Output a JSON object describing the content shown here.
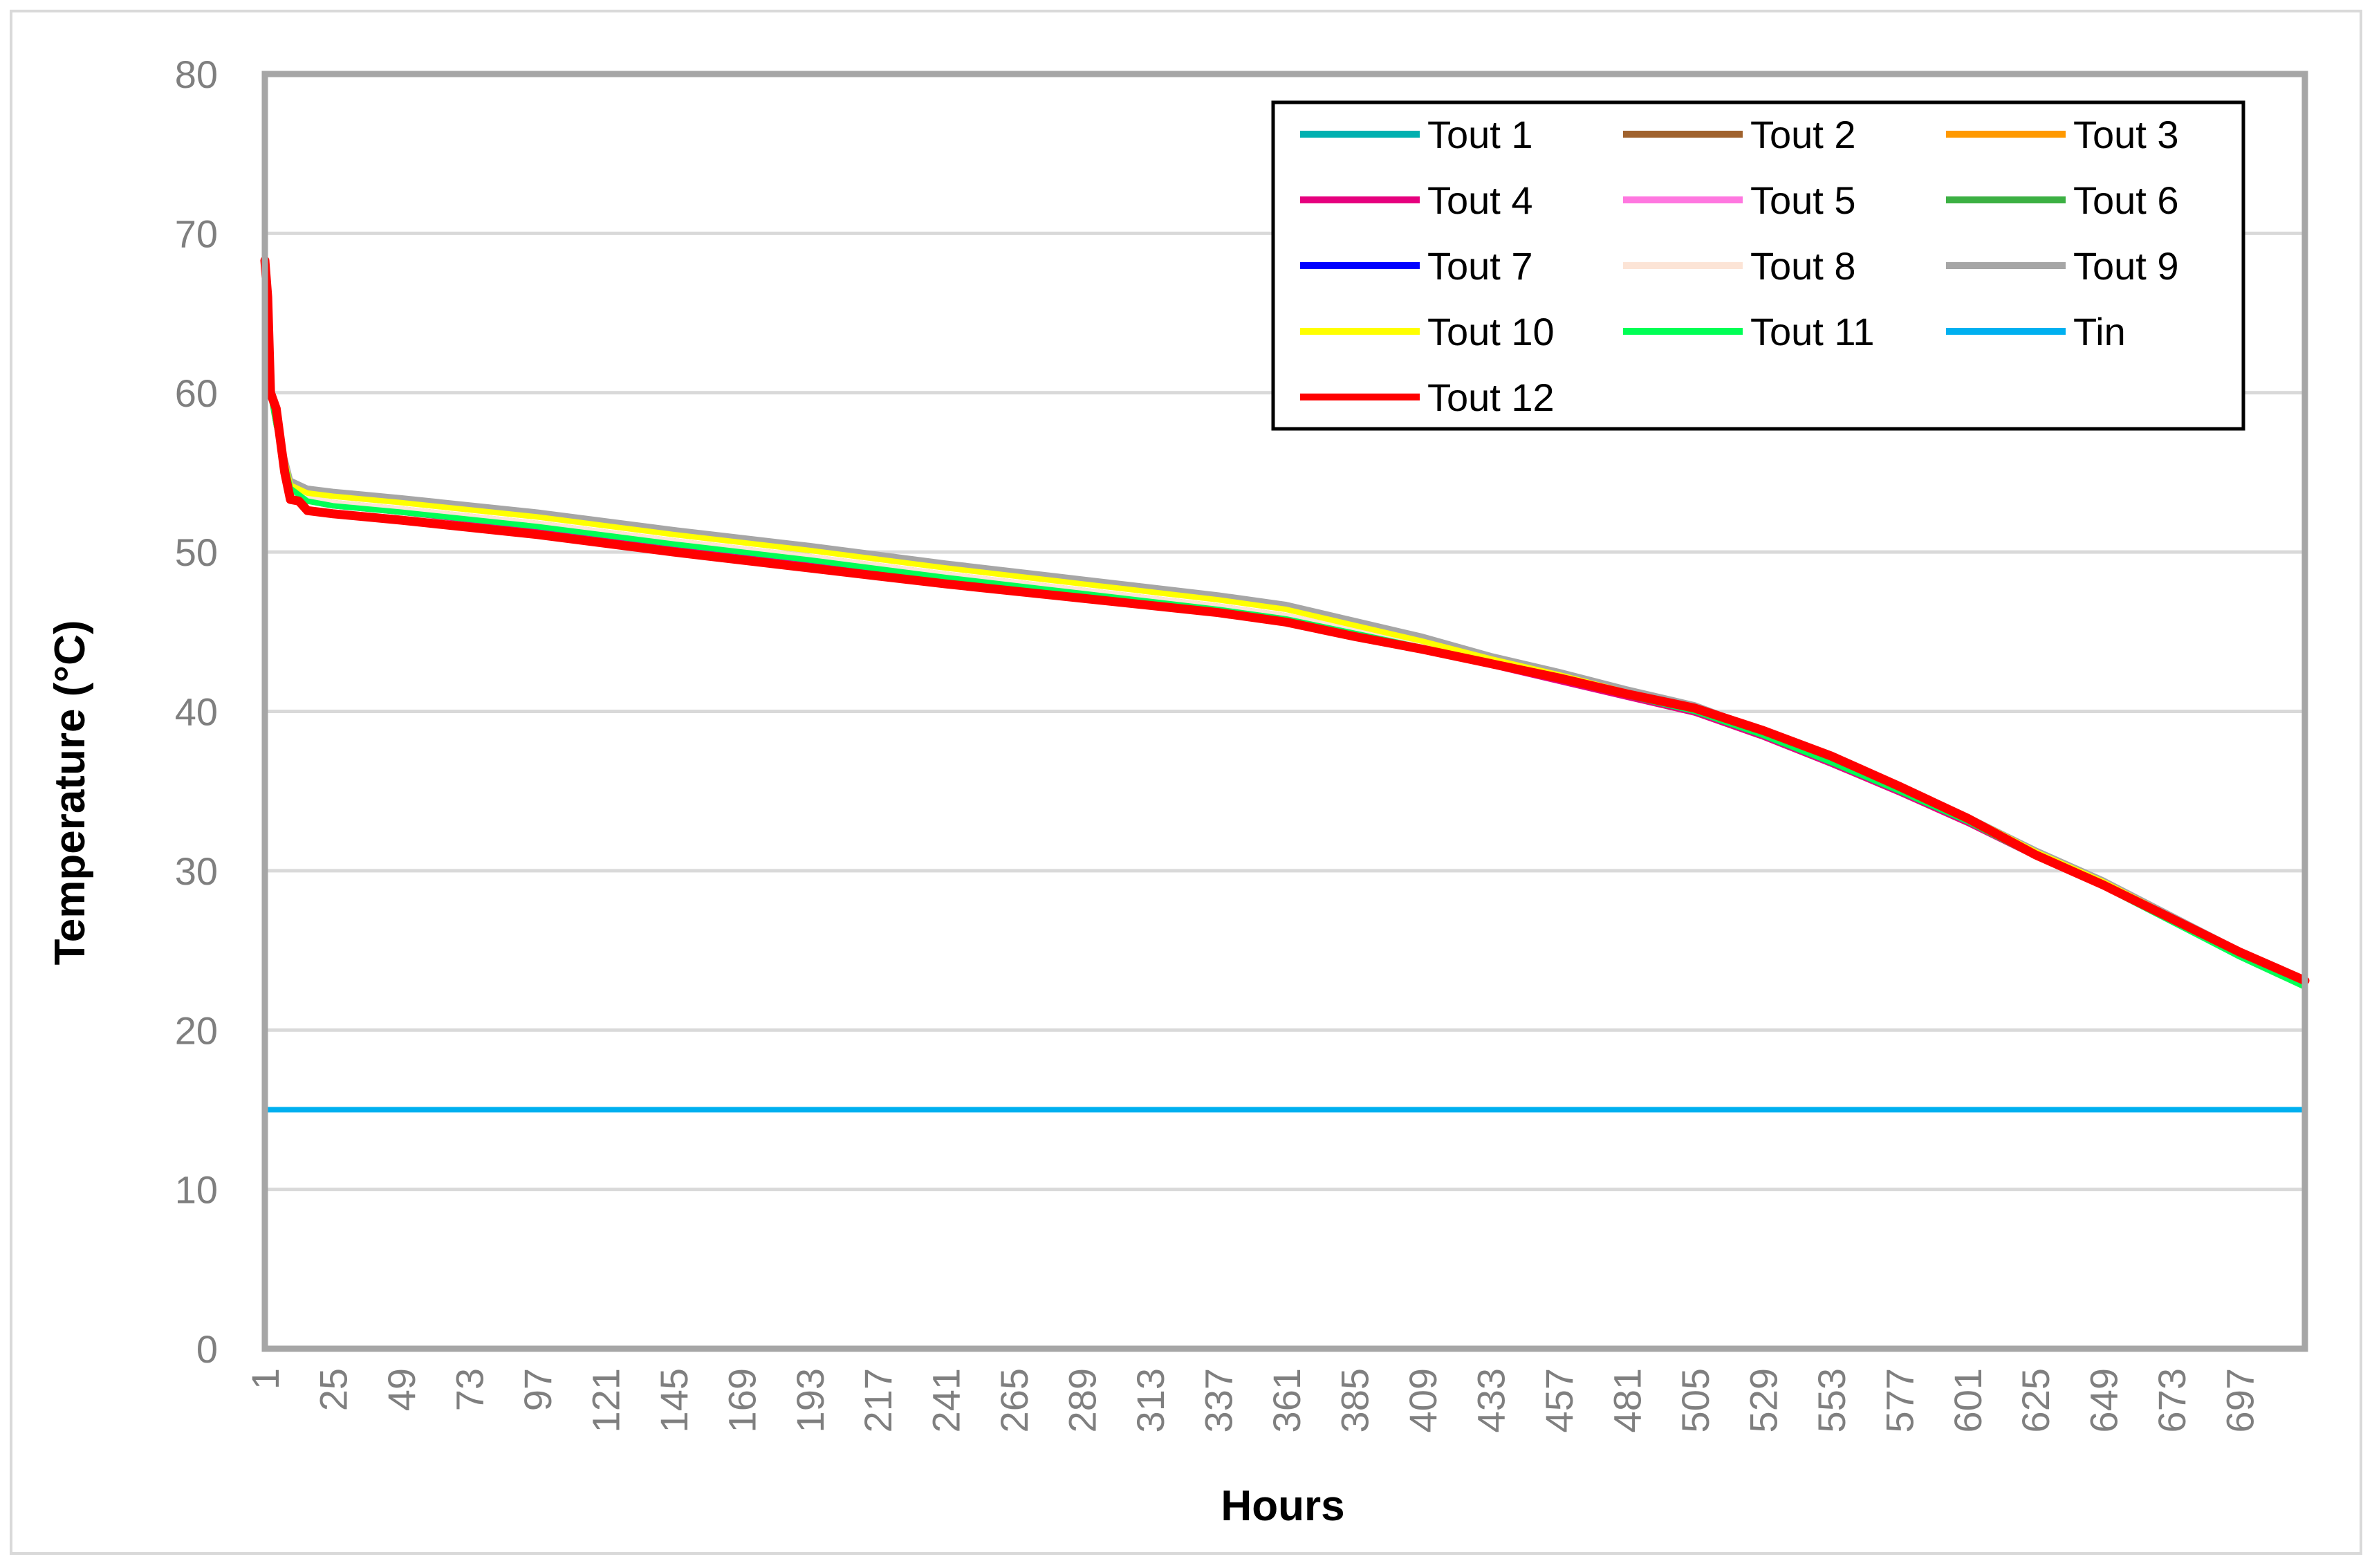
{
  "chart_data": {
    "type": "line",
    "title": "",
    "xlabel": "Hours",
    "ylabel": "Temperature (°C)",
    "xlim": [
      1,
      720
    ],
    "ylim": [
      0,
      80
    ],
    "y_ticks": [
      0,
      10,
      20,
      30,
      40,
      50,
      60,
      70,
      80
    ],
    "x_ticks": [
      "1",
      "25",
      "49",
      "73",
      "97",
      "121",
      "145",
      "169",
      "193",
      "217",
      "241",
      "265",
      "289",
      "313",
      "337",
      "361",
      "385",
      "409",
      "433",
      "457",
      "481",
      "505",
      "529",
      "553",
      "577",
      "601",
      "625",
      "649",
      "673",
      "697"
    ],
    "grid": "horizontal",
    "legend_position": "top-right",
    "series": [
      {
        "name": "Tout 1",
        "color": "#00B0B0",
        "x": [
          1,
          3,
          5,
          10,
          16,
          25,
          49,
          97,
          145,
          193,
          241,
          289,
          337,
          361,
          385,
          409,
          433,
          457,
          481,
          505,
          529,
          553,
          577,
          601,
          625,
          649,
          673,
          697,
          720
        ],
        "values": [
          66,
          60,
          58,
          54,
          53.3,
          53,
          52.6,
          51.7,
          50.6,
          49.6,
          48.5,
          47.5,
          46.5,
          45.9,
          45,
          44.1,
          43,
          42,
          41,
          40,
          38.5,
          36.8,
          35,
          33.2,
          31,
          29.2,
          27,
          24.8,
          22.9
        ]
      },
      {
        "name": "Tout 2",
        "color": "#A0622D",
        "x": [
          1,
          3,
          5,
          10,
          16,
          25,
          49,
          97,
          145,
          193,
          241,
          289,
          337,
          361,
          385,
          409,
          433,
          457,
          481,
          505,
          529,
          553,
          577,
          601,
          625,
          649,
          673,
          697,
          720
        ],
        "values": [
          66,
          60,
          58,
          54,
          53.2,
          53,
          52.5,
          51.6,
          50.5,
          49.5,
          48.4,
          47.4,
          46.4,
          45.8,
          44.9,
          44,
          43,
          42,
          41,
          40,
          38.5,
          36.8,
          35,
          33.1,
          31,
          29.1,
          27,
          24.8,
          22.9
        ]
      },
      {
        "name": "Tout 3",
        "color": "#FF9900",
        "x": [
          1,
          3,
          5,
          10,
          16,
          25,
          49,
          97,
          145,
          193,
          241,
          289,
          337,
          361,
          385,
          409,
          433,
          457,
          481,
          505,
          529,
          553,
          577,
          601,
          625,
          649,
          673,
          697,
          720
        ],
        "values": [
          66,
          60,
          58,
          54,
          53.4,
          53.1,
          52.7,
          51.8,
          50.7,
          49.7,
          48.6,
          47.6,
          46.6,
          46,
          45.1,
          44.2,
          43.1,
          42.1,
          41.1,
          40.1,
          38.6,
          36.9,
          35.1,
          33.3,
          31.1,
          29.3,
          27.1,
          24.9,
          23
        ]
      },
      {
        "name": "Tout 4",
        "color": "#E6007E",
        "x": [
          1,
          3,
          5,
          10,
          16,
          25,
          49,
          97,
          145,
          193,
          241,
          289,
          337,
          361,
          385,
          409,
          433,
          457,
          481,
          505,
          529,
          553,
          577,
          601,
          625,
          649,
          673,
          697,
          720
        ],
        "values": [
          66,
          60,
          58,
          54,
          53.2,
          52.9,
          52.5,
          51.5,
          50.4,
          49.4,
          48.3,
          47.3,
          46.3,
          45.7,
          44.8,
          43.9,
          42.9,
          41.9,
          40.9,
          39.9,
          38.4,
          36.7,
          34.9,
          33,
          30.9,
          29,
          26.9,
          24.7,
          22.8
        ]
      },
      {
        "name": "Tout 5",
        "color": "#FF77E0",
        "x": [
          1,
          3,
          5,
          10,
          16,
          25,
          49,
          97,
          145,
          193,
          241,
          289,
          337,
          361,
          385,
          409,
          433,
          457,
          481,
          505,
          529,
          553,
          577,
          601,
          625,
          649,
          673,
          697,
          720
        ],
        "values": [
          66,
          60,
          58,
          54,
          53.3,
          53,
          52.6,
          51.6,
          50.5,
          49.5,
          48.4,
          47.4,
          46.4,
          45.8,
          44.9,
          44,
          43,
          42,
          41,
          40,
          38.5,
          36.8,
          35,
          33.1,
          31,
          29.1,
          27,
          24.8,
          22.9
        ]
      },
      {
        "name": "Tout 6",
        "color": "#3CB043",
        "x": [
          1,
          3,
          5,
          10,
          16,
          25,
          49,
          97,
          145,
          193,
          241,
          289,
          337,
          361,
          385,
          409,
          433,
          457,
          481,
          505,
          529,
          553,
          577,
          601,
          625,
          649,
          673,
          697,
          720
        ],
        "values": [
          66,
          60,
          58,
          54,
          53.3,
          53,
          52.6,
          51.7,
          50.6,
          49.6,
          48.5,
          47.5,
          46.5,
          45.9,
          45,
          44.1,
          43.1,
          42.1,
          41.1,
          40.1,
          38.5,
          36.8,
          35,
          33.2,
          31,
          29.1,
          26.9,
          24.6,
          22.7
        ]
      },
      {
        "name": "Tout 7",
        "color": "#0000FF",
        "x": [
          1,
          3,
          5,
          10,
          16,
          25,
          49,
          97,
          145,
          193,
          241,
          289,
          337,
          361,
          385,
          409,
          433,
          457,
          481,
          505,
          529,
          553,
          577,
          601,
          625,
          649,
          673,
          697,
          720
        ],
        "values": [
          66,
          60,
          58,
          54,
          53.3,
          53,
          52.6,
          51.6,
          50.5,
          49.5,
          48.4,
          47.4,
          46.4,
          45.8,
          44.9,
          44,
          43,
          42,
          41,
          40,
          38.5,
          36.8,
          35,
          33.1,
          31,
          29.1,
          27,
          24.8,
          22.9
        ]
      },
      {
        "name": "Tout 8",
        "color": "#FCE4D6",
        "x": [
          1,
          3,
          5,
          10,
          16,
          25,
          49,
          97,
          145,
          193,
          241,
          289,
          337,
          361,
          385,
          409,
          433,
          457,
          481,
          505,
          529,
          553,
          577,
          601,
          625,
          649,
          673,
          697,
          720
        ],
        "values": [
          66,
          60,
          58,
          54,
          53.4,
          53.1,
          52.7,
          51.8,
          50.7,
          49.7,
          48.6,
          47.6,
          46.6,
          46,
          45.1,
          44.2,
          43.1,
          42.1,
          41.1,
          40.1,
          38.6,
          36.9,
          35.1,
          33.2,
          31.1,
          29.2,
          27,
          24.8,
          22.9
        ]
      },
      {
        "name": "Tout 9",
        "color": "#A6A6A6",
        "x": [
          1,
          3,
          5,
          10,
          16,
          25,
          49,
          97,
          145,
          193,
          241,
          289,
          337,
          361,
          385,
          409,
          433,
          457,
          481,
          505,
          529,
          553,
          577,
          601,
          625,
          649,
          673,
          697,
          720
        ],
        "values": [
          66,
          60,
          58,
          54.5,
          54,
          53.8,
          53.4,
          52.5,
          51.4,
          50.4,
          49.3,
          48.3,
          47.3,
          46.7,
          45.7,
          44.7,
          43.5,
          42.5,
          41.4,
          40.4,
          38.8,
          37,
          35.2,
          33.4,
          31.3,
          29.4,
          27.2,
          25,
          23
        ]
      },
      {
        "name": "Tout 10",
        "color": "#FFFF00",
        "x": [
          1,
          3,
          5,
          10,
          16,
          25,
          49,
          97,
          145,
          193,
          241,
          289,
          337,
          361,
          385,
          409,
          433,
          457,
          481,
          505,
          529,
          553,
          577,
          601,
          625,
          649,
          673,
          697,
          720
        ],
        "values": [
          66,
          60,
          58,
          54.2,
          53.7,
          53.5,
          53.1,
          52.2,
          51.1,
          50.1,
          49,
          48,
          47,
          46.4,
          45.4,
          44.4,
          43.3,
          42.3,
          41.2,
          40.2,
          38.7,
          36.9,
          35.1,
          33.4,
          31.2,
          29.3,
          27.1,
          24.9,
          23
        ]
      },
      {
        "name": "Tout 11",
        "color": "#00FF55",
        "x": [
          1,
          3,
          5,
          10,
          16,
          25,
          49,
          97,
          145,
          193,
          241,
          289,
          337,
          361,
          385,
          409,
          433,
          457,
          481,
          505,
          529,
          553,
          577,
          601,
          625,
          649,
          673,
          697,
          720
        ],
        "values": [
          66,
          60,
          58,
          54,
          53.2,
          52.9,
          52.5,
          51.6,
          50.5,
          49.5,
          48.4,
          47.4,
          46.4,
          45.8,
          44.9,
          44,
          43,
          42,
          41,
          40,
          38.5,
          36.8,
          35,
          33.1,
          30.9,
          29,
          26.8,
          24.6,
          22.7
        ]
      },
      {
        "name": "Tin",
        "color": "#00B0F0",
        "x": [
          1,
          720
        ],
        "values": [
          15,
          15
        ]
      },
      {
        "name": "Tout 12",
        "color": "#FF0000",
        "x": [
          1,
          2,
          3,
          5,
          8,
          10,
          13,
          16,
          25,
          49,
          97,
          145,
          193,
          241,
          289,
          337,
          361,
          385,
          409,
          433,
          457,
          481,
          505,
          529,
          553,
          577,
          601,
          625,
          649,
          673,
          697,
          720
        ],
        "values": [
          68.3,
          66,
          60,
          59,
          55,
          53.3,
          53.2,
          52.6,
          52.4,
          52,
          51.1,
          50,
          49,
          48,
          47.1,
          46.2,
          45.6,
          44.7,
          43.9,
          43,
          42.1,
          41.1,
          40.2,
          38.8,
          37.2,
          35.3,
          33.3,
          31,
          29.1,
          27,
          24.9,
          23.1
        ]
      }
    ]
  }
}
